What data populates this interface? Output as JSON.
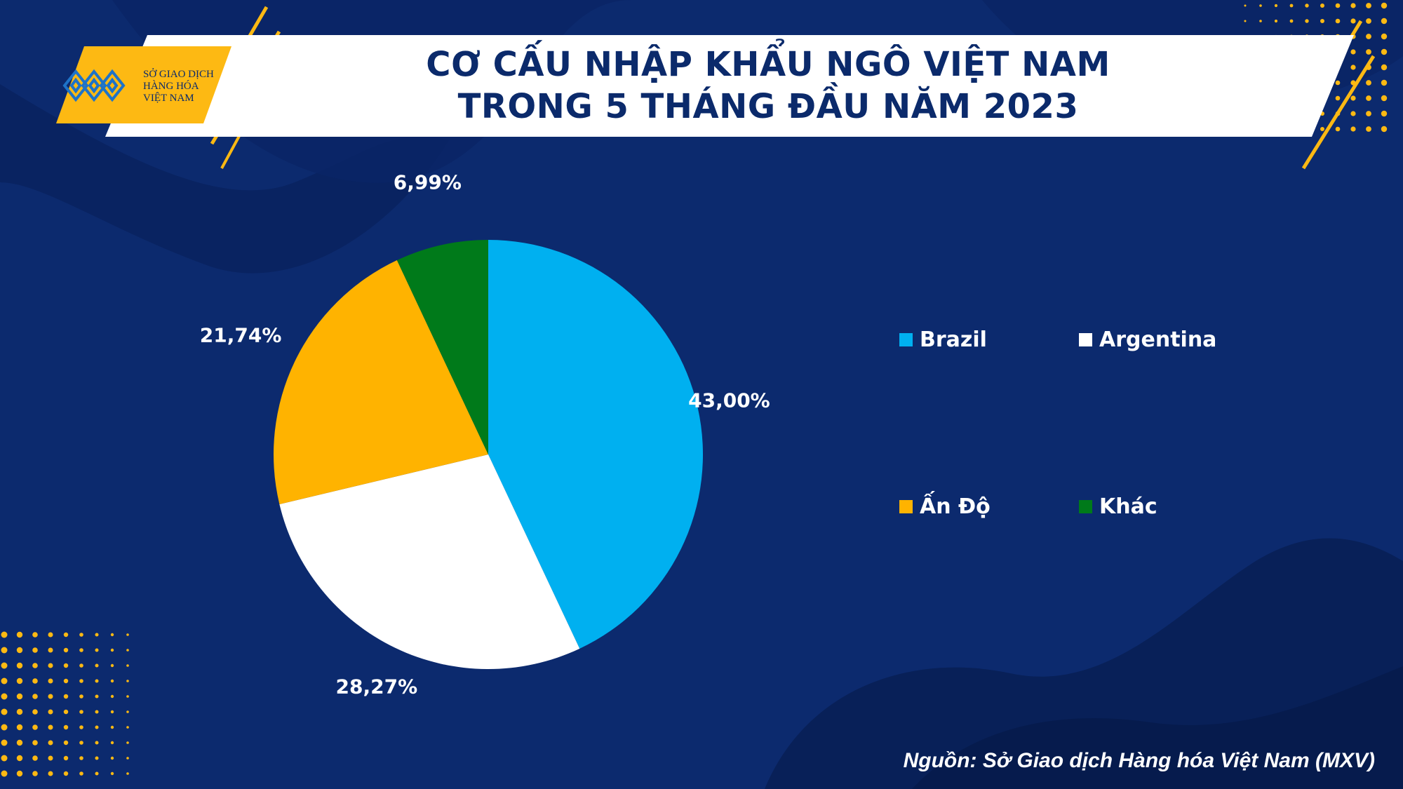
{
  "header": {
    "title_line1": "CƠ CẤU NHẬP KHẨU NGÔ VIỆT NAM",
    "title_line2": "TRONG 5 THÁNG ĐẦU NĂM 2023"
  },
  "logo": {
    "line1": "SỞ GIAO DỊCH",
    "line2": "HÀNG HÓA",
    "line3": "VIỆT NAM"
  },
  "source": "Nguồn: Sở Giao dịch Hàng hóa Việt Nam (MXV)",
  "colors": {
    "background": "#0c2a6e",
    "accent": "#fdb913",
    "title_text": "#0b2a6b"
  },
  "chart_data": {
    "type": "pie",
    "title": "CƠ CẤU NHẬP KHẨU NGÔ VIỆT NAM TRONG 5 THÁNG ĐẦU NĂM 2023",
    "legend_position": "right",
    "categories": [
      "Brazil",
      "Argentina",
      "Ấn Độ",
      "Khác"
    ],
    "values": [
      43.0,
      28.27,
      21.74,
      6.99
    ],
    "labels": [
      "43,00%",
      "28,27%",
      "21,74%",
      "6,99%"
    ],
    "colors": [
      "#00b0f0",
      "#ffffff",
      "#ffb300",
      "#007a1a"
    ]
  }
}
